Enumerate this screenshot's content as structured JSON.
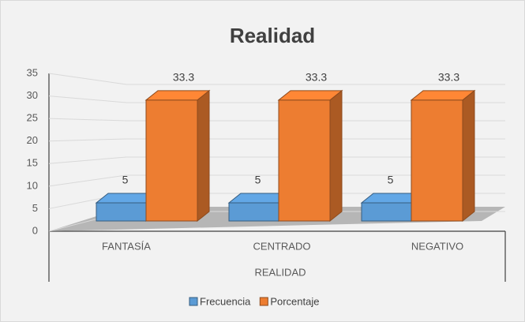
{
  "chart_data": {
    "type": "bar3d",
    "title": "Realidad",
    "categories": [
      "FANTASÍA",
      "CENTRADO",
      "NEGATIVO"
    ],
    "xlabel": "REALIDAD",
    "series": [
      {
        "name": "Frecuencia",
        "color": "#5b9bd5",
        "values": [
          5,
          5,
          5
        ]
      },
      {
        "name": "Porcentaje",
        "color": "#ed7d31",
        "values": [
          33.3,
          33.3,
          33.3
        ]
      }
    ],
    "ylim": [
      0,
      35
    ],
    "yticks": [
      0,
      5,
      10,
      15,
      20,
      25,
      30,
      35
    ],
    "grid": true,
    "legend": "bottom"
  }
}
